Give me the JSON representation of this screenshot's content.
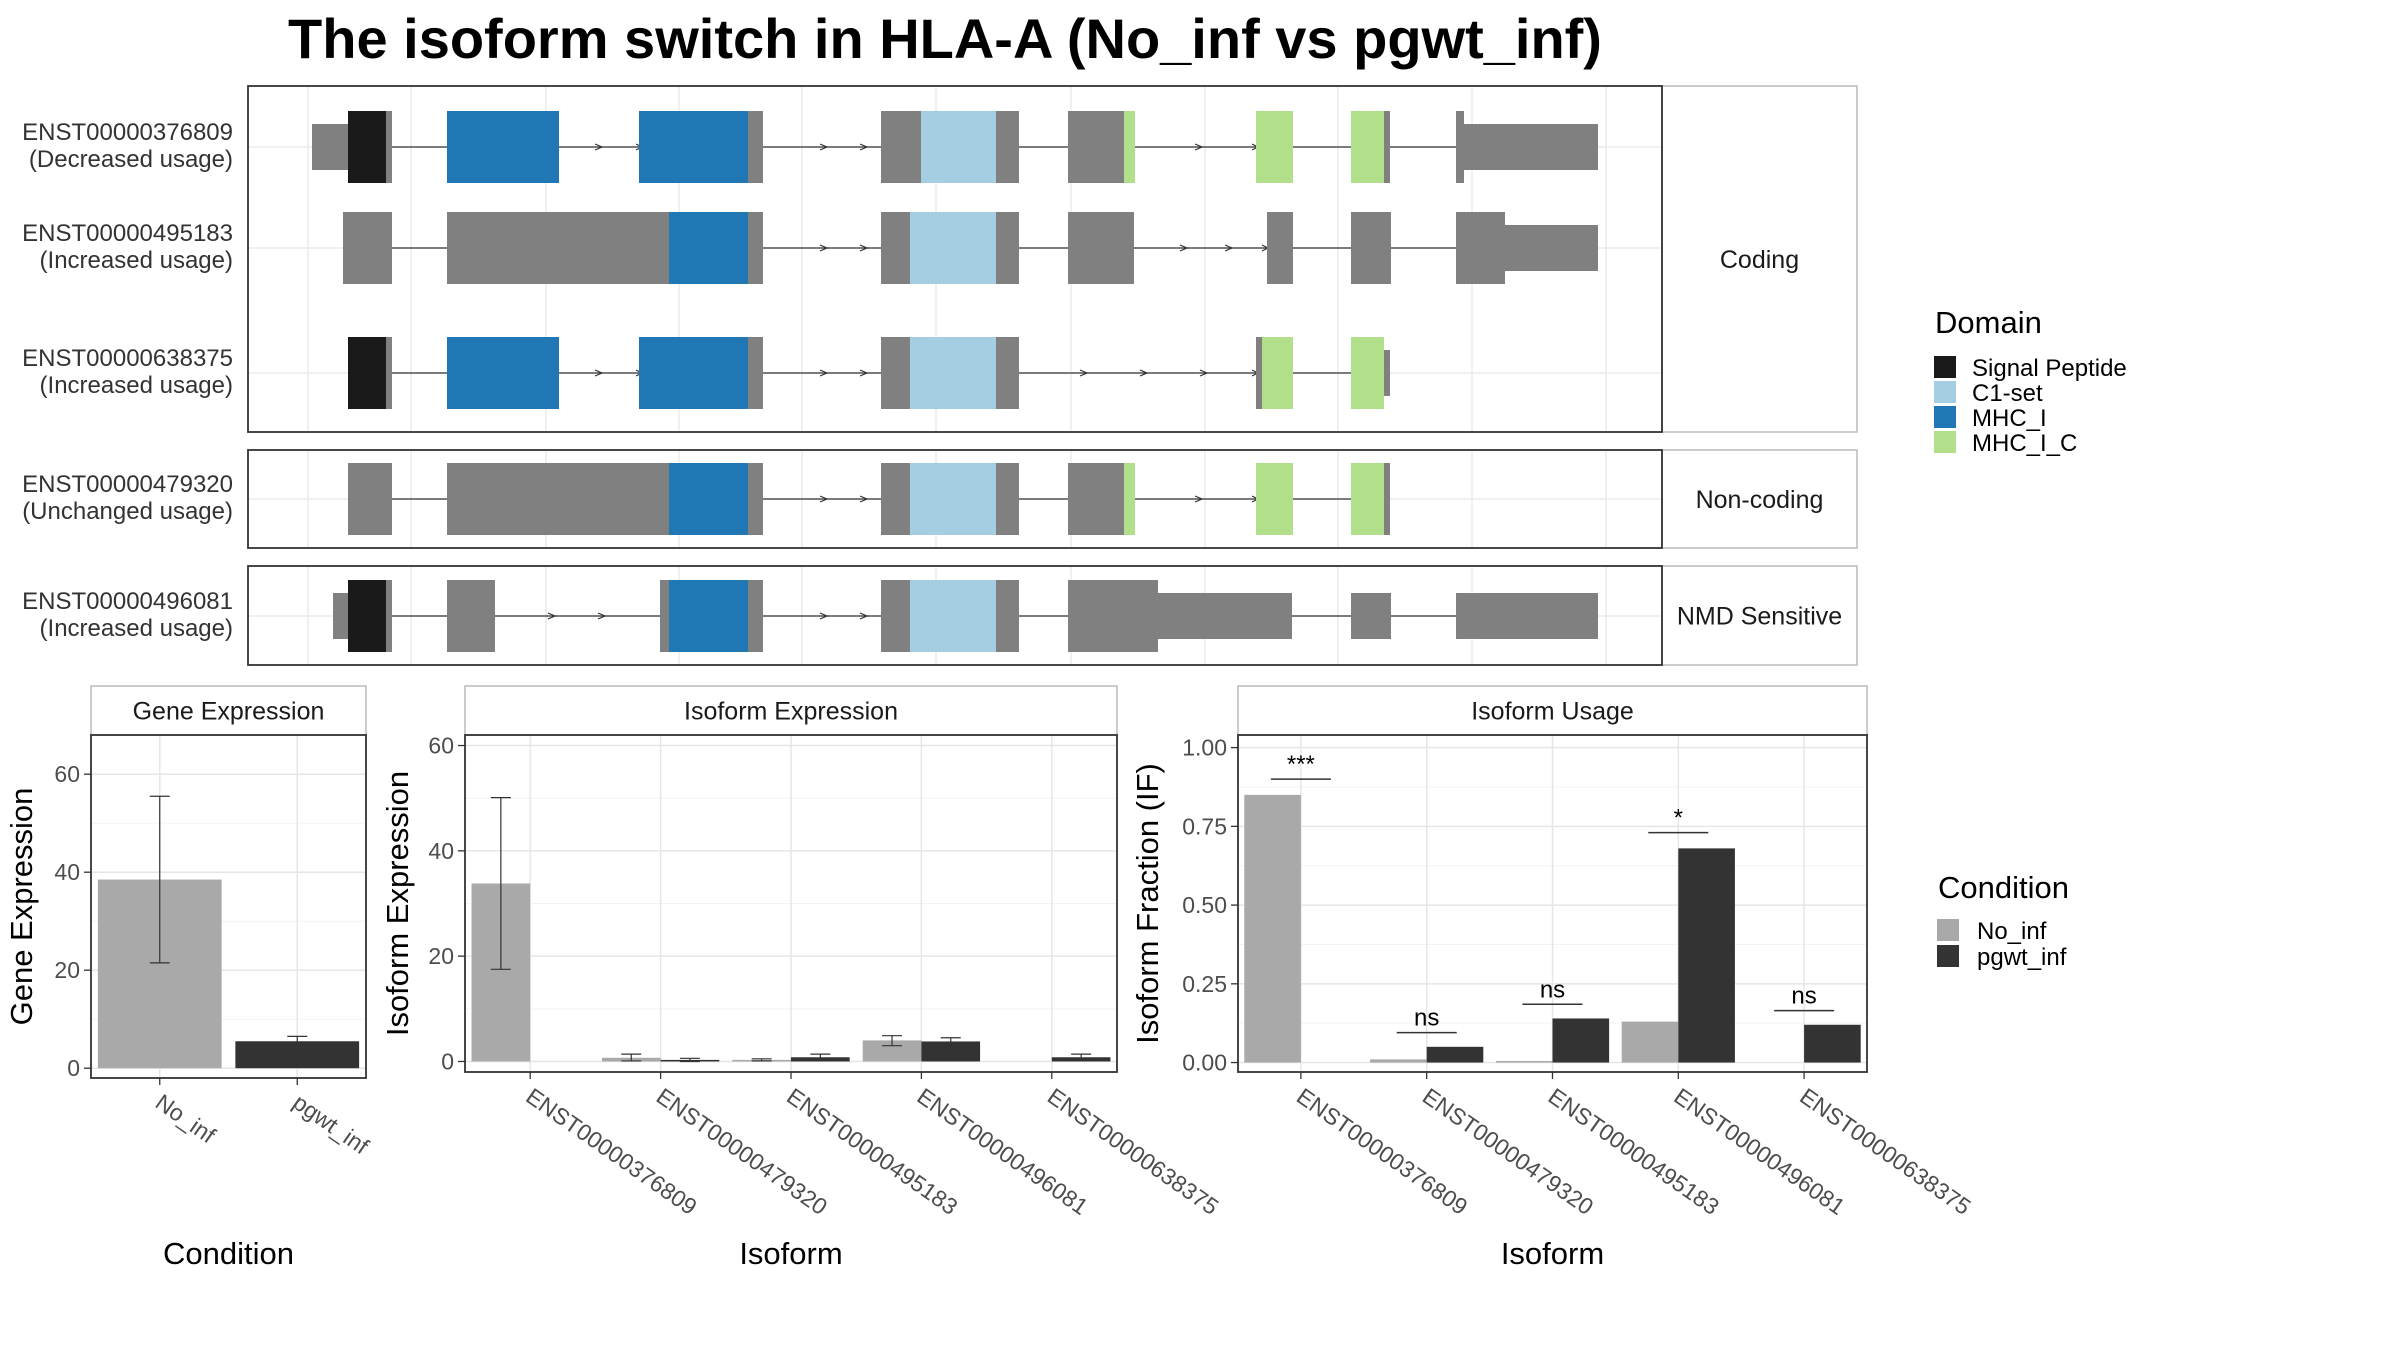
{
  "title": "The isoform switch in HLA-A (No_inf vs pgwt_inf)",
  "colors": {
    "gray_exon": "#808080",
    "signal_peptide": "#1a1a1a",
    "c1_set": "#a6cee3",
    "mhc_i": "#1f78b4",
    "mhc_i_c": "#b2df8a",
    "no_inf": "#a9a9a9",
    "pgwt_inf": "#333333"
  },
  "structure": {
    "domain_legend": {
      "title": "Domain",
      "items": [
        {
          "label": "Signal Peptide",
          "color": "#1a1a1a"
        },
        {
          "label": "C1-set",
          "color": "#a6cee3"
        },
        {
          "label": "MHC_I",
          "color": "#1f78b4"
        },
        {
          "label": "MHC_I_C",
          "color": "#b2df8a"
        }
      ]
    },
    "groups": [
      {
        "label": "Coding",
        "isoforms": [
          {
            "id": "ENST00000376809",
            "usage": "(Decreased usage)"
          },
          {
            "id": "ENST00000495183",
            "usage": "(Increased usage)"
          },
          {
            "id": "ENST00000638375",
            "usage": "(Increased usage)"
          }
        ]
      },
      {
        "label": "Non-coding",
        "isoforms": [
          {
            "id": "ENST00000479320",
            "usage": "(Unchanged usage)"
          }
        ]
      },
      {
        "label": "NMD Sensitive",
        "isoforms": [
          {
            "id": "ENST00000496081",
            "usage": "(Increased usage)"
          }
        ]
      }
    ]
  },
  "condition_legend": {
    "title": "Condition",
    "items": [
      {
        "label": "No_inf",
        "color": "#a9a9a9"
      },
      {
        "label": "pgwt_inf",
        "color": "#333333"
      }
    ]
  },
  "chart_data": [
    {
      "type": "bar",
      "title": "Gene Expression",
      "xlabel": "Condition",
      "ylabel": "Gene Expression",
      "ylim": [
        -2,
        68
      ],
      "yticks": [
        0,
        20,
        40,
        60
      ],
      "categories": [
        "No_inf",
        "pgwt_inf"
      ],
      "values": [
        38.5,
        5.5
      ],
      "error_low": [
        21.5,
        4.5
      ],
      "error_high": [
        55.5,
        6.5
      ]
    },
    {
      "type": "bar",
      "title": "Isoform Expression",
      "xlabel": "Isoform",
      "ylabel": "Isoform Expression",
      "ylim": [
        -2,
        62
      ],
      "yticks": [
        0,
        20,
        40,
        60
      ],
      "categories": [
        "ENST00000376809",
        "ENST00000479320",
        "ENST00000495183",
        "ENST00000496081",
        "ENST00000638375"
      ],
      "series": [
        {
          "name": "No_inf",
          "values": [
            33.8,
            0.7,
            0.3,
            4.0,
            0.0
          ],
          "error_low": [
            17.5,
            0.1,
            0.1,
            3.0,
            0.0
          ],
          "error_high": [
            50.1,
            1.4,
            0.5,
            4.9,
            0.0
          ]
        },
        {
          "name": "pgwt_inf",
          "values": [
            0.0,
            0.3,
            0.8,
            3.8,
            0.8
          ],
          "error_low": [
            0.0,
            0.0,
            0.2,
            3.1,
            0.2
          ],
          "error_high": [
            0.0,
            0.6,
            1.4,
            4.5,
            1.4
          ]
        }
      ]
    },
    {
      "type": "bar",
      "title": "Isoform Usage",
      "xlabel": "Isoform",
      "ylabel": "Isoform Fraction (IF)",
      "ylim": [
        -0.03,
        1.04
      ],
      "yticks": [
        "0.00",
        "0.25",
        "0.50",
        "0.75",
        "1.00"
      ],
      "categories": [
        "ENST00000376809",
        "ENST00000479320",
        "ENST00000495183",
        "ENST00000496081",
        "ENST00000638375"
      ],
      "series": [
        {
          "name": "No_inf",
          "values": [
            0.85,
            0.01,
            0.005,
            0.13,
            0.0
          ]
        },
        {
          "name": "pgwt_inf",
          "values": [
            0.0,
            0.05,
            0.14,
            0.68,
            0.12
          ]
        }
      ],
      "significance": [
        "***",
        "ns",
        "ns",
        "*",
        "ns"
      ],
      "significance_y": [
        0.9,
        0.095,
        0.185,
        0.73,
        0.165
      ]
    }
  ]
}
